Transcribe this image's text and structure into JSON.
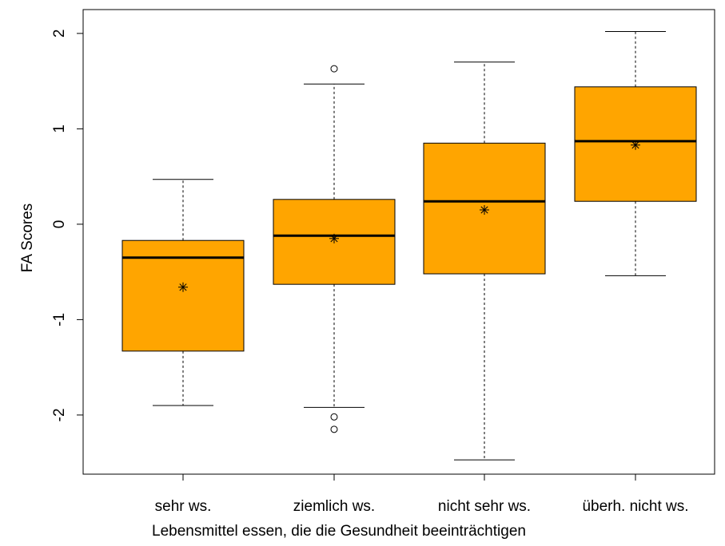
{
  "chart_data": {
    "type": "box",
    "xlabel": "Lebensmittel essen, die die Gesundheit beeinträchtigen",
    "ylabel": "FA Scores",
    "ylim": [
      -2.62,
      2.25
    ],
    "yticks": [
      -2,
      -1,
      0,
      1,
      2
    ],
    "ytick_labels": [
      "-2",
      "-1",
      "0",
      "1",
      "2"
    ],
    "grid": false,
    "box_color": "#FFA500",
    "categories": [
      "sehr ws.",
      "ziemlich ws.",
      "nicht sehr ws.",
      "überh. nicht ws."
    ],
    "boxes": [
      {
        "category": "sehr ws.",
        "whisker_low": -1.9,
        "q1": -1.33,
        "median": -0.35,
        "q3": -0.17,
        "whisker_high": 0.47,
        "mean": -0.66,
        "outliers": []
      },
      {
        "category": "ziemlich ws.",
        "whisker_low": -1.92,
        "q1": -0.63,
        "median": -0.12,
        "q3": 0.26,
        "whisker_high": 1.47,
        "mean": -0.15,
        "outliers": [
          1.63,
          -2.02,
          -2.15
        ]
      },
      {
        "category": "nicht sehr ws.",
        "whisker_low": -2.47,
        "q1": -0.52,
        "median": 0.24,
        "q3": 0.85,
        "whisker_high": 1.7,
        "mean": 0.15,
        "outliers": []
      },
      {
        "category": "überh. nicht ws.",
        "whisker_low": -0.54,
        "q1": 0.24,
        "median": 0.87,
        "q3": 1.44,
        "whisker_high": 2.02,
        "mean": 0.83,
        "outliers": []
      }
    ]
  }
}
